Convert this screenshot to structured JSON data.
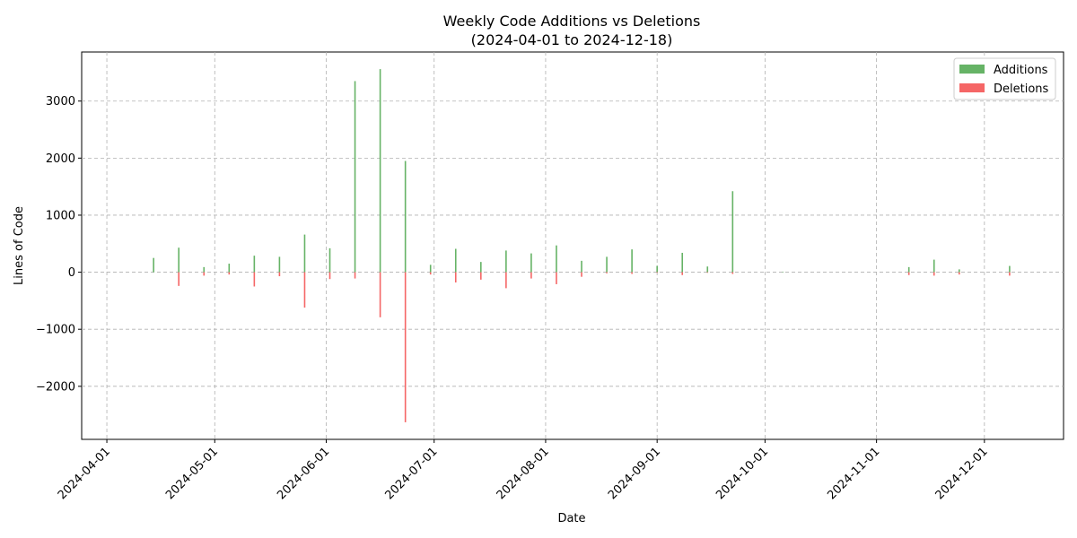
{
  "chart_data": {
    "type": "bar",
    "title": "Weekly Code Additions vs Deletions",
    "subtitle": "(2024-04-01 to 2024-12-18)",
    "xlabel": "Date",
    "ylabel": "Lines of Code",
    "xlim": [
      "2024-03-25",
      "2024-12-23"
    ],
    "ylim": [
      -2930,
      3860
    ],
    "y_ticks": [
      -2000,
      -1000,
      0,
      1000,
      2000,
      3000
    ],
    "y_tick_labels": [
      "−2000",
      "−1000",
      "0",
      "1000",
      "2000",
      "3000"
    ],
    "x_ticks": [
      "2024-04-01",
      "2024-05-01",
      "2024-06-01",
      "2024-07-01",
      "2024-08-01",
      "2024-09-01",
      "2024-10-01",
      "2024-11-01",
      "2024-12-01"
    ],
    "grid": true,
    "legend_position": "upper right",
    "colors": {
      "additions": "#66b366",
      "deletions": "#f56666"
    },
    "series": [
      {
        "name": "Additions",
        "x": [
          "2024-04-14",
          "2024-04-21",
          "2024-04-28",
          "2024-05-05",
          "2024-05-12",
          "2024-05-19",
          "2024-05-26",
          "2024-06-02",
          "2024-06-09",
          "2024-06-16",
          "2024-06-23",
          "2024-06-30",
          "2024-07-07",
          "2024-07-14",
          "2024-07-21",
          "2024-07-28",
          "2024-08-04",
          "2024-08-11",
          "2024-08-18",
          "2024-08-25",
          "2024-09-01",
          "2024-09-08",
          "2024-09-15",
          "2024-09-22",
          "2024-10-06",
          "2024-11-10",
          "2024-11-17",
          "2024-11-24",
          "2024-12-08"
        ],
        "values": [
          250,
          430,
          90,
          150,
          290,
          270,
          660,
          420,
          3350,
          3560,
          1950,
          130,
          410,
          180,
          380,
          330,
          470,
          200,
          270,
          400,
          110,
          340,
          100,
          1420,
          10,
          90,
          220,
          50,
          110
        ]
      },
      {
        "name": "Deletions",
        "x": [
          "2024-04-14",
          "2024-04-21",
          "2024-04-28",
          "2024-05-05",
          "2024-05-12",
          "2024-05-19",
          "2024-05-26",
          "2024-06-02",
          "2024-06-09",
          "2024-06-16",
          "2024-06-23",
          "2024-06-30",
          "2024-07-07",
          "2024-07-14",
          "2024-07-21",
          "2024-07-28",
          "2024-08-04",
          "2024-08-11",
          "2024-08-18",
          "2024-08-25",
          "2024-09-01",
          "2024-09-08",
          "2024-09-15",
          "2024-09-22",
          "2024-10-06",
          "2024-11-10",
          "2024-11-17",
          "2024-11-24",
          "2024-12-08"
        ],
        "values": [
          0,
          -240,
          -60,
          -40,
          -250,
          -70,
          -620,
          -120,
          -110,
          -790,
          -2630,
          -40,
          -180,
          -130,
          -280,
          -110,
          -210,
          -80,
          -20,
          -30,
          -10,
          -50,
          -10,
          -30,
          0,
          -50,
          -60,
          -40,
          -60
        ]
      }
    ]
  }
}
